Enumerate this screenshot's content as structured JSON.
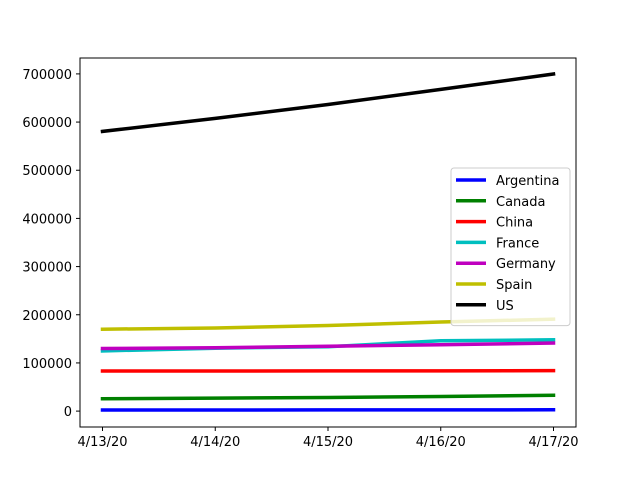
{
  "chart_data": {
    "type": "line",
    "title": "",
    "xlabel": "",
    "ylabel": "",
    "x": [
      "4/13/20",
      "4/14/20",
      "4/15/20",
      "4/16/20",
      "4/17/20"
    ],
    "ylim": [
      -33000,
      733000
    ],
    "yticks": [
      0,
      100000,
      200000,
      300000,
      400000,
      500000,
      600000,
      700000
    ],
    "ytick_labels": [
      "0",
      "100000",
      "200000",
      "300000",
      "400000",
      "500000",
      "600000",
      "700000"
    ],
    "grid": false,
    "legend_position": "center-right",
    "series": [
      {
        "name": "Argentina",
        "color": "#0000ff",
        "values": [
          2200,
          2300,
          2450,
          2600,
          2750
        ]
      },
      {
        "name": "Canada",
        "color": "#008000",
        "values": [
          25700,
          27000,
          28200,
          30300,
          32800
        ]
      },
      {
        "name": "China",
        "color": "#ff0000",
        "values": [
          83200,
          83300,
          83400,
          83400,
          84000
        ]
      },
      {
        "name": "France",
        "color": "#00bfbf",
        "values": [
          124900,
          130500,
          133600,
          146000,
          148000
        ]
      },
      {
        "name": "Germany",
        "color": "#bf00bf",
        "values": [
          130000,
          131400,
          134800,
          137700,
          141400
        ]
      },
      {
        "name": "Spain",
        "color": "#bfbf00",
        "values": [
          170100,
          172500,
          177600,
          184900,
          190800
        ]
      },
      {
        "name": "US",
        "color": "#000000",
        "values": [
          580600,
          607700,
          636400,
          667800,
          699700
        ]
      }
    ]
  }
}
